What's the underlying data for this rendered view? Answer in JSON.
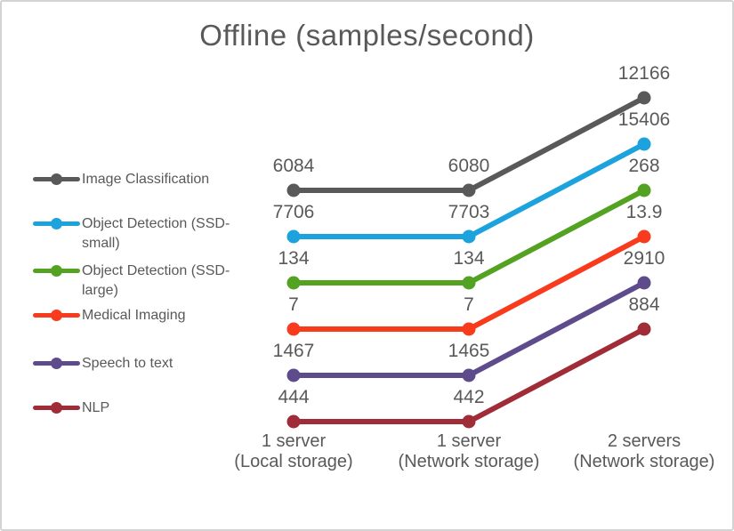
{
  "frame": {
    "background": "#FFFFFF",
    "border_color": "#D3D3D3",
    "text_color": "#595959"
  },
  "chart_data": {
    "type": "line",
    "title": "Offline (samples/second)",
    "categories": [
      [
        "1 server",
        "(Local storage)"
      ],
      [
        "1 server",
        "(Network storage)"
      ],
      [
        "2 servers",
        "(Network storage)"
      ]
    ],
    "series": [
      {
        "name": "Image Classification",
        "color": "#595959",
        "values": [
          6084,
          6080,
          12166
        ]
      },
      {
        "name": "Object Detection (SSD-small)",
        "color": "#1CA2DC",
        "values": [
          7706,
          7703,
          15406
        ]
      },
      {
        "name": "Object Detection (SSD-large)",
        "color": "#54A221",
        "values": [
          134,
          134,
          268
        ]
      },
      {
        "name": "Medical Imaging",
        "color": "#F83B1D",
        "values": [
          7,
          7,
          13.9
        ]
      },
      {
        "name": "Speech to text",
        "color": "#5E4B8C",
        "values": [
          1467,
          1465,
          2910
        ]
      },
      {
        "name": "NLP",
        "color": "#A02C38",
        "values": [
          444,
          442,
          884
        ]
      }
    ],
    "legend_position": "left",
    "grid": false,
    "axis_lines": false,
    "data_labels_shown": true,
    "xlabel": "",
    "ylabel": ""
  }
}
